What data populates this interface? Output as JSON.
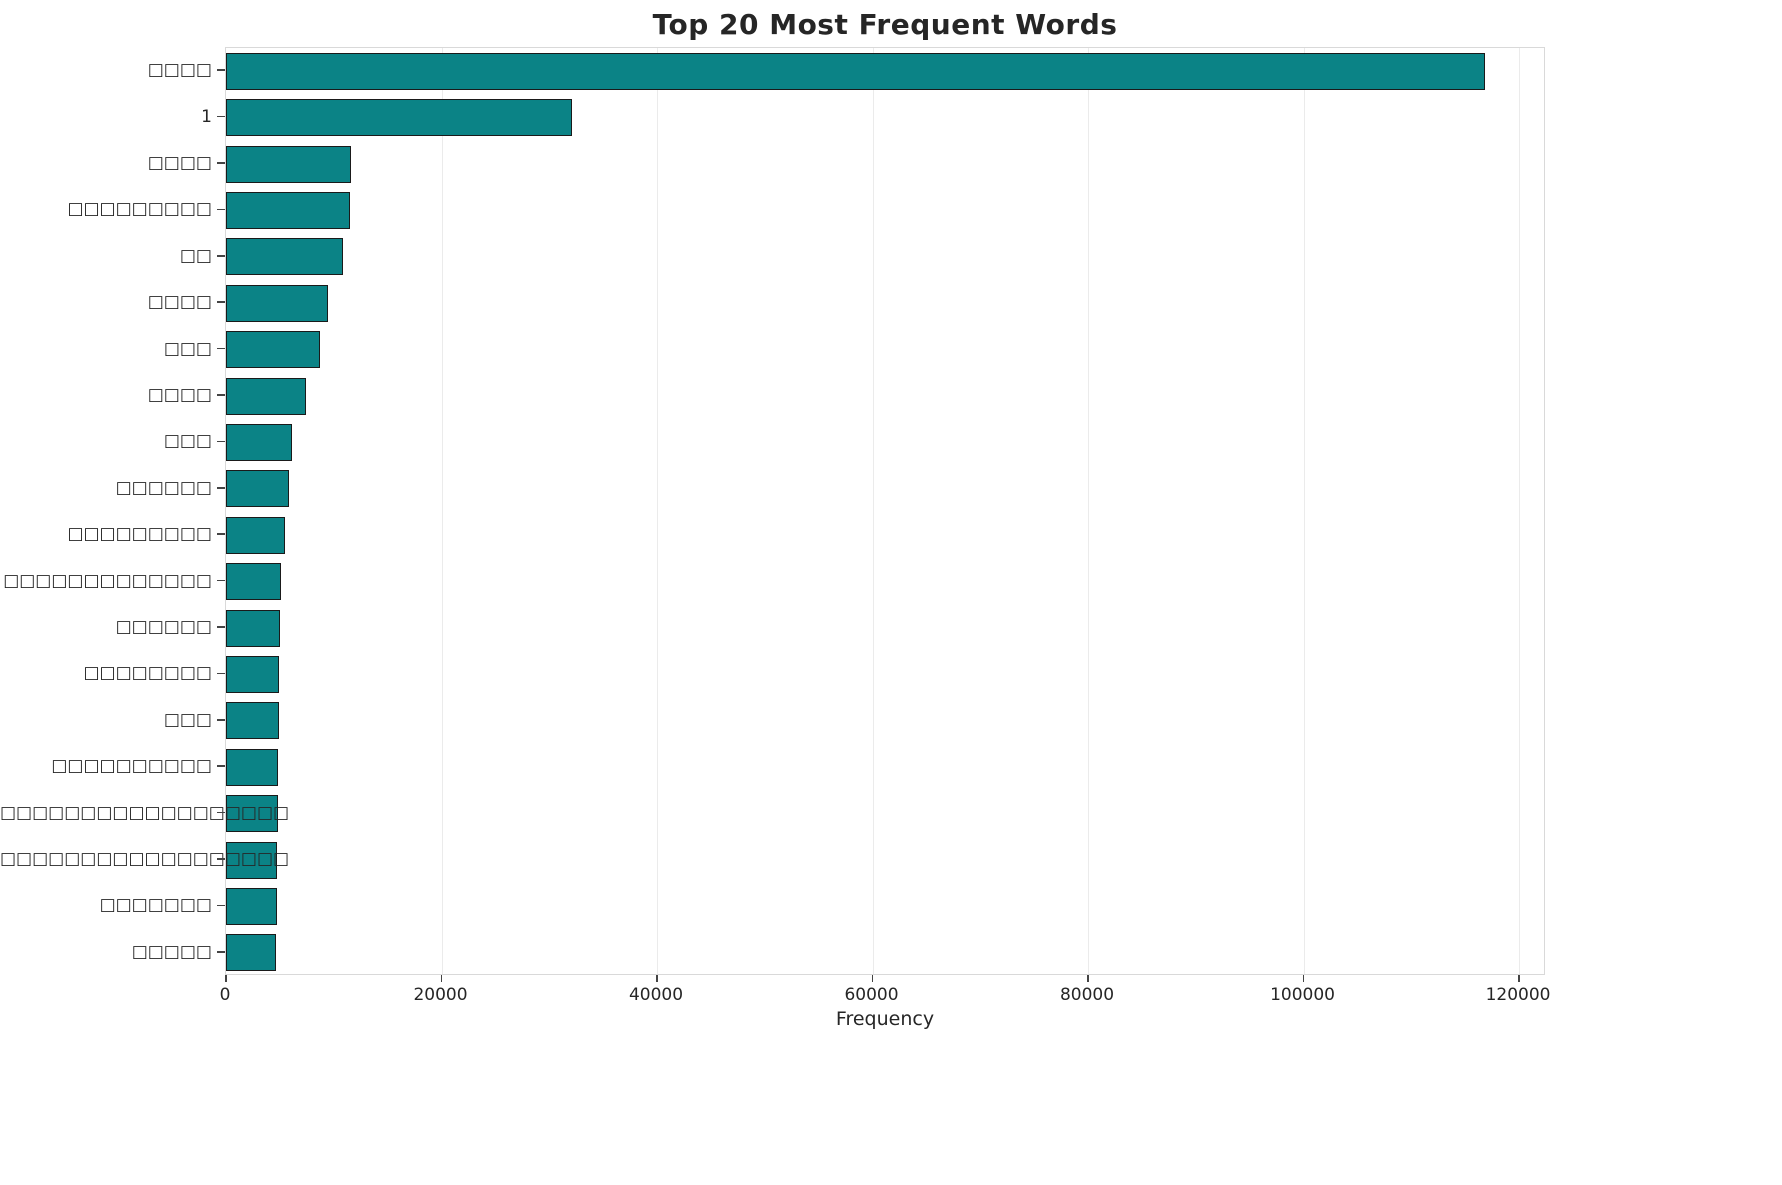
{
  "chart_data": {
    "type": "bar",
    "orientation": "horizontal",
    "title": "Top 20 Most Frequent Words",
    "xlabel": "Frequency",
    "ylabel": "",
    "xlim": [
      0,
      122500
    ],
    "x_ticks": [
      0,
      20000,
      40000,
      60000,
      80000,
      100000,
      120000
    ],
    "grid": true,
    "legend": "none",
    "bar_color": "#0b8386",
    "bar_edge_color": "#1a1a1a",
    "note": "y-axis category labels render as missing-glyph boxes (tofu) in the screenshot",
    "categories": [
      "□□□□",
      "1",
      "□□□□",
      "□□□□□□□□□",
      "□□",
      "□□□□",
      "□□□",
      "□□□□",
      "□□□",
      "□□□□□□",
      "□□□□□□□□□",
      "□□□□□□□□□□□□□",
      "□□□□□□",
      "□□□□□□□□",
      "□□□",
      "□□□□□□□□□□",
      "□□□□□□□□□□□□□□□□□□",
      "□□□□□□□□□□□□□□□□□□",
      "□□□□□□□",
      "□□□□□"
    ],
    "values": [
      116800,
      32100,
      11600,
      11500,
      10900,
      9500,
      8700,
      7400,
      6100,
      5850,
      5500,
      5150,
      5050,
      4950,
      4900,
      4850,
      4800,
      4750,
      4700,
      4650
    ]
  }
}
